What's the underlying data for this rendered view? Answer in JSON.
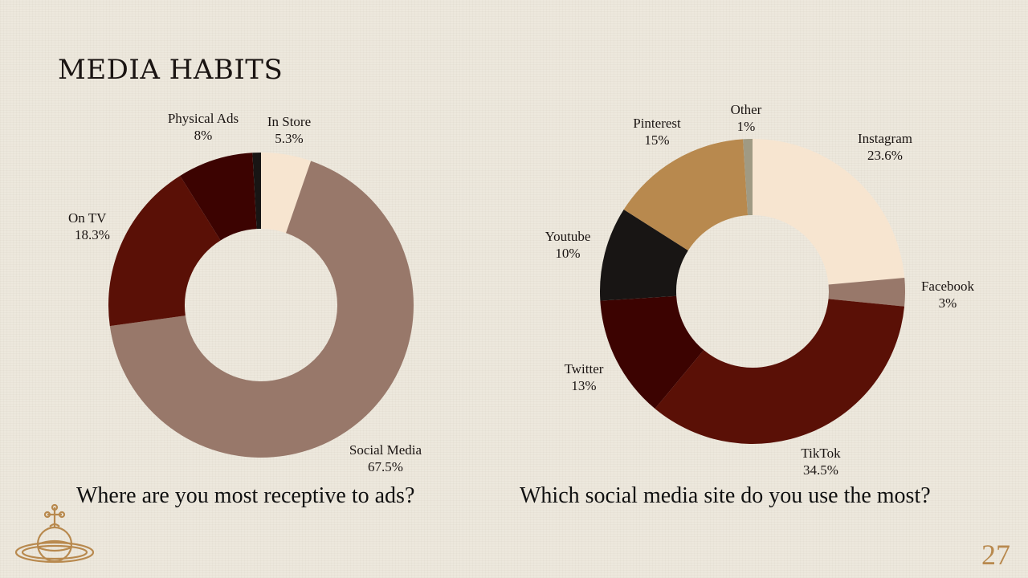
{
  "title": "MEDIA HABITS",
  "page_number": "27",
  "colors": {
    "text": "#1a1412",
    "accent": "#b8894e"
  },
  "chart_data": [
    {
      "type": "pie",
      "variant": "donut",
      "question": "Where are you most receptive to ads?",
      "slices": [
        {
          "label": "In Store",
          "value": 5.3,
          "value_label": "5.3%",
          "color": "#f7e5d0"
        },
        {
          "label": "Social Media",
          "value": 67.5,
          "value_label": "67.5%",
          "color": "#98786a"
        },
        {
          "label": "On TV",
          "value": 18.3,
          "value_label": "18.3%",
          "color": "#5a1006"
        },
        {
          "label": "Physical Ads",
          "value": 8,
          "value_label": "8%",
          "color": "#3c0301"
        },
        {
          "label": "",
          "value": 0.9,
          "value_label": "",
          "color": "#181514"
        }
      ]
    },
    {
      "type": "pie",
      "variant": "donut",
      "question": "Which social media site do you use the most?",
      "slices": [
        {
          "label": "Instagram",
          "value": 23.6,
          "value_label": "23.6%",
          "color": "#f7e5d0"
        },
        {
          "label": "Facebook",
          "value": 3,
          "value_label": "3%",
          "color": "#98786a"
        },
        {
          "label": "TikTok",
          "value": 34.5,
          "value_label": "34.5%",
          "color": "#5a1006"
        },
        {
          "label": "Twitter",
          "value": 13,
          "value_label": "13%",
          "color": "#3c0301"
        },
        {
          "label": "Youtube",
          "value": 10,
          "value_label": "10%",
          "color": "#181514"
        },
        {
          "label": "Pinterest",
          "value": 15,
          "value_label": "15%",
          "color": "#b8894e"
        },
        {
          "label": "Other",
          "value": 1,
          "value_label": "1%",
          "color": "#a09a83"
        }
      ]
    }
  ]
}
